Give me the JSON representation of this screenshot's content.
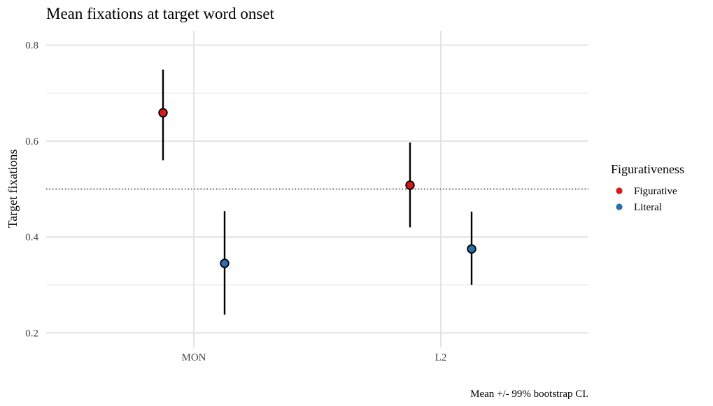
{
  "chart_data": {
    "type": "scatter",
    "title": "Mean fixations at target word onset",
    "xlabel": "",
    "ylabel": "Target fixations",
    "caption": "Mean +/- 99% bootstrap CI.",
    "categories": [
      "MON",
      "L2"
    ],
    "ylim": [
      0.17,
      0.83
    ],
    "yticks": [
      0.2,
      0.4,
      0.6,
      0.8
    ],
    "ytick_labels": [
      "0.2",
      "0.4",
      "0.6",
      "0.8"
    ],
    "reference_line": 0.5,
    "grid": true,
    "legend": {
      "title": "Figurativeness",
      "position": "right"
    },
    "series": [
      {
        "name": "Figurative",
        "color": "#d7191c",
        "values": [
          0.659,
          0.508
        ],
        "ci_low": [
          0.56,
          0.42
        ],
        "ci_high": [
          0.749,
          0.597
        ]
      },
      {
        "name": "Literal",
        "color": "#2c6fad",
        "values": [
          0.345,
          0.375
        ],
        "ci_low": [
          0.238,
          0.3
        ],
        "ci_high": [
          0.454,
          0.453
        ]
      }
    ]
  }
}
